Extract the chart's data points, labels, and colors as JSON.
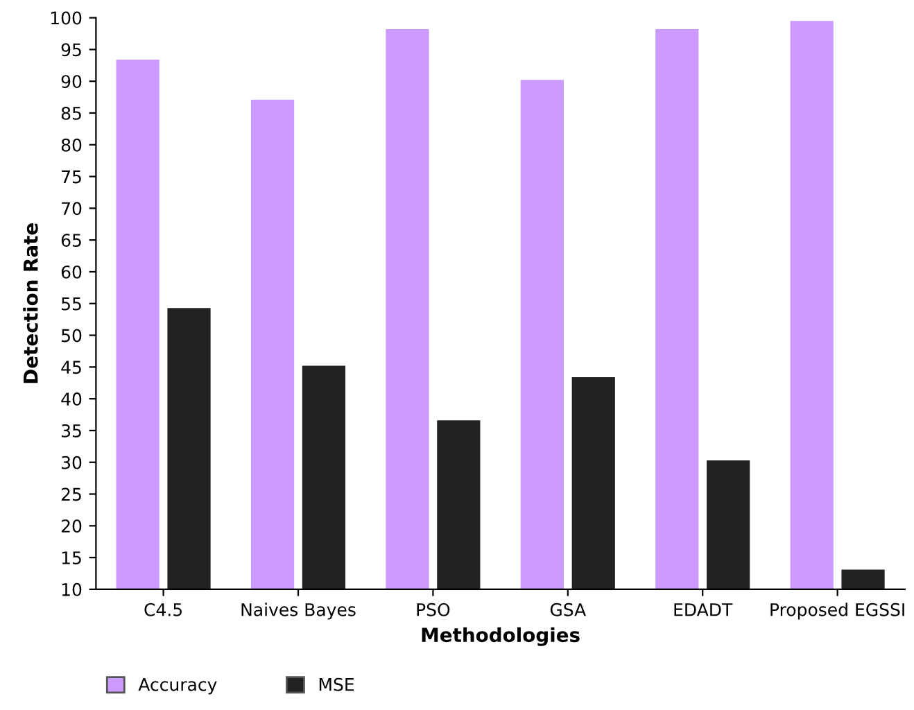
{
  "chart_data": {
    "type": "bar",
    "xlabel": "Methodologies",
    "ylabel": "Detection Rate",
    "categories": [
      "C4.5",
      "Naives Bayes",
      "PSO",
      "GSA",
      "EDADT",
      "Proposed EGSSI"
    ],
    "series": [
      {
        "name": "Accuracy",
        "color": "#cc99ff",
        "values": [
          93.4,
          87.1,
          98.2,
          90.2,
          98.2,
          99.5
        ]
      },
      {
        "name": "MSE",
        "color": "#222222",
        "values": [
          54.3,
          45.2,
          36.6,
          43.4,
          30.3,
          13.1
        ]
      }
    ],
    "ylim": [
      10,
      100
    ],
    "yticks": [
      10,
      15,
      20,
      25,
      30,
      35,
      40,
      45,
      50,
      55,
      60,
      65,
      70,
      75,
      80,
      85,
      90,
      95,
      100
    ],
    "grid": false,
    "legend": "bottom left"
  }
}
